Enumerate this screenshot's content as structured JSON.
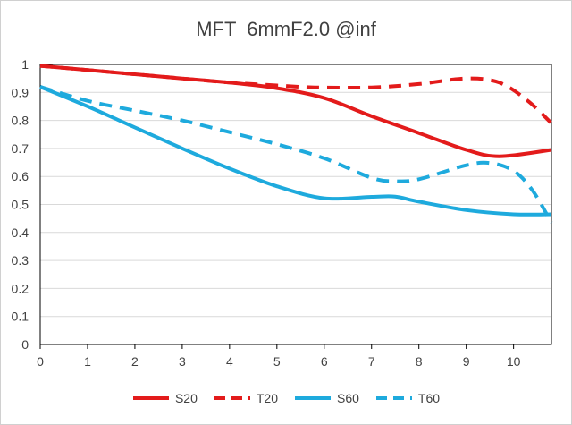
{
  "chart_data": {
    "type": "line",
    "title": "MFT  6mmF2.0 @inf",
    "xlabel": "",
    "ylabel": "",
    "xlim": [
      0,
      10.8
    ],
    "ylim": [
      0,
      1
    ],
    "x_ticks": [
      "0",
      "1",
      "2",
      "3",
      "4",
      "5",
      "6",
      "7",
      "8",
      "9",
      "10"
    ],
    "y_ticks": [
      "0",
      "0.1",
      "0.2",
      "0.3",
      "0.4",
      "0.5",
      "0.6",
      "0.7",
      "0.8",
      "0.9",
      "1"
    ],
    "grid": "horizontal",
    "legend_position": "bottom",
    "series": [
      {
        "name": "S20",
        "style": "solid",
        "color": "#e31b1b",
        "x": [
          0,
          1,
          2,
          3,
          4,
          5,
          6,
          7,
          8,
          9,
          9.7,
          10.8
        ],
        "y": [
          0.995,
          0.98,
          0.965,
          0.95,
          0.935,
          0.915,
          0.88,
          0.815,
          0.755,
          0.695,
          0.672,
          0.695
        ]
      },
      {
        "name": "T20",
        "style": "dashed",
        "color": "#e31b1b",
        "x": [
          0,
          1,
          2,
          3,
          4,
          5,
          5.8,
          7,
          8,
          9,
          9.7,
          10.3,
          10.8
        ],
        "y": [
          0.995,
          0.98,
          0.965,
          0.95,
          0.935,
          0.925,
          0.918,
          0.918,
          0.93,
          0.95,
          0.935,
          0.87,
          0.79
        ]
      },
      {
        "name": "S60",
        "style": "solid",
        "color": "#1eaadd",
        "x": [
          0,
          1,
          2,
          3,
          4,
          5,
          6,
          7,
          7.5,
          8,
          9,
          10,
          10.8
        ],
        "y": [
          0.92,
          0.85,
          0.775,
          0.7,
          0.628,
          0.565,
          0.522,
          0.527,
          0.528,
          0.51,
          0.48,
          0.465,
          0.465
        ]
      },
      {
        "name": "T60",
        "style": "dashed",
        "color": "#1eaadd",
        "x": [
          0,
          1,
          2,
          3,
          4,
          5,
          6,
          7,
          7.5,
          8,
          9,
          9.5,
          10,
          10.4,
          10.8
        ],
        "y": [
          0.92,
          0.87,
          0.835,
          0.8,
          0.758,
          0.715,
          0.665,
          0.595,
          0.583,
          0.59,
          0.64,
          0.648,
          0.62,
          0.55,
          0.435
        ]
      }
    ]
  }
}
